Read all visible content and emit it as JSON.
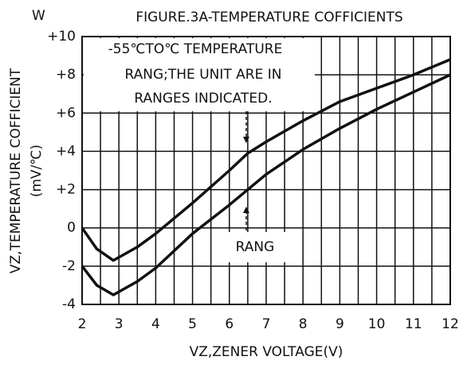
{
  "chart_data": {
    "type": "line",
    "corner_label": "W",
    "title": "FIGURE.3A-TEMPERATURE COFFICIENTS",
    "x_label": "VZ,ZENER VOLTAGE(V)",
    "y_label": [
      "VZ,TEMPERATURE COFFICIENT",
      "(mV/℃)"
    ],
    "annotations": [
      "-55℃TO℃ TEMPERATURE",
      "RANG;THE UNIT ARE IN",
      "RANGES  INDICATED.",
      "RANG"
    ],
    "x": [
      2,
      2.4,
      2.85,
      3.5,
      4,
      5,
      6,
      6.5,
      7,
      8,
      9,
      10,
      11,
      12
    ],
    "series": [
      {
        "color": "#111111",
        "values": [
          0,
          -1.1,
          -1.7,
          -1.0,
          -0.3,
          1.3,
          3.0,
          3.9,
          4.5,
          5.6,
          6.6,
          7.3,
          8.0,
          8.8
        ]
      },
      {
        "color": "#111111",
        "values": [
          -2,
          -3.0,
          -3.5,
          -2.8,
          -2.1,
          -0.3,
          1.2,
          2.0,
          2.8,
          4.1,
          5.2,
          6.2,
          7.1,
          8.0
        ]
      }
    ],
    "xlim": [
      2,
      12
    ],
    "xticks": [
      2,
      3,
      4,
      5,
      6,
      7,
      8,
      9,
      10,
      11,
      12
    ],
    "xminorticks": [
      2.5,
      3.5,
      4.5,
      5.5,
      6.5,
      7.5,
      8.5,
      9.5,
      10.5,
      11.5
    ],
    "ylim": [
      -4,
      10
    ],
    "yticks": [
      -4,
      -2,
      0,
      {
        "value": 2,
        "label": "+2"
      },
      {
        "value": 4,
        "label": "+4"
      },
      {
        "value": 6,
        "label": "+6"
      },
      {
        "value": 8,
        "label": "+8"
      },
      {
        "value": 10,
        "label": "+10"
      }
    ],
    "grid": true
  }
}
